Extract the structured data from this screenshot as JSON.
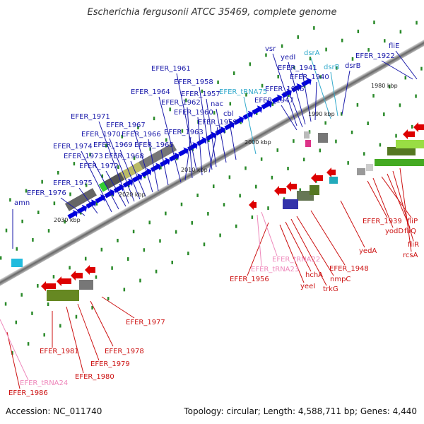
{
  "title": "Escherichia fergusonii ATCC 35469, complete genome",
  "footer": {
    "accession": "Accession: NC_011740",
    "topology": "Topology: circular; Length: 4,588,711 bp; Genes: 4,440"
  },
  "colors": {
    "forward": "#0000dd",
    "reverse": "#dd0000",
    "trna_forward": "#33bbee",
    "trna_reverse": "#ee88bb",
    "backbone": "#888888"
  },
  "kbp_ticks": [
    "2030 kbp",
    "2020 kbp",
    "2010 kbp",
    "2000 kbp",
    "1990 kbp",
    "1980 kbp"
  ],
  "forward_labels": [
    "amn",
    "EFER_1976",
    "EFER_1975",
    "EFER_1974",
    "EFER_1973",
    "EFER_1972",
    "EFER_1971",
    "EFER_1970",
    "EFER_1969",
    "EFER_1968",
    "EFER_1967",
    "EFER_1966",
    "EFER_1965",
    "EFER_1964",
    "EFER_1963",
    "EFER_1962",
    "EFER_1961",
    "EFER_1960",
    "EFER_1959",
    "EFER_1958",
    "EFER_1957",
    "nac",
    "cbl",
    "EFER_1947",
    "EFER_1945",
    "vsr",
    "yedI",
    "EFER_1941",
    "EFER_1940",
    "dsrB",
    "EFER_1922",
    "fliE"
  ],
  "forward_trna_labels": [
    "EFER_tRNA75",
    "dsrA",
    "dsrB"
  ],
  "reverse_labels": [
    "EFER_1956",
    "yeeI",
    "hchA",
    "trkG",
    "nmpC",
    "EFER_1948",
    "yedA",
    "EFER_1939",
    "yodD",
    "fliP",
    "fliQ",
    "fliR",
    "rcsA",
    "EFER_1977",
    "EFER_1978",
    "EFER_1979",
    "EFER_1980",
    "EFER_1981",
    "EFER_1986"
  ],
  "reverse_trna_labels": [
    "EFER_tRNA22",
    "EFER_tRNA23",
    "EFER_tRNA24"
  ]
}
